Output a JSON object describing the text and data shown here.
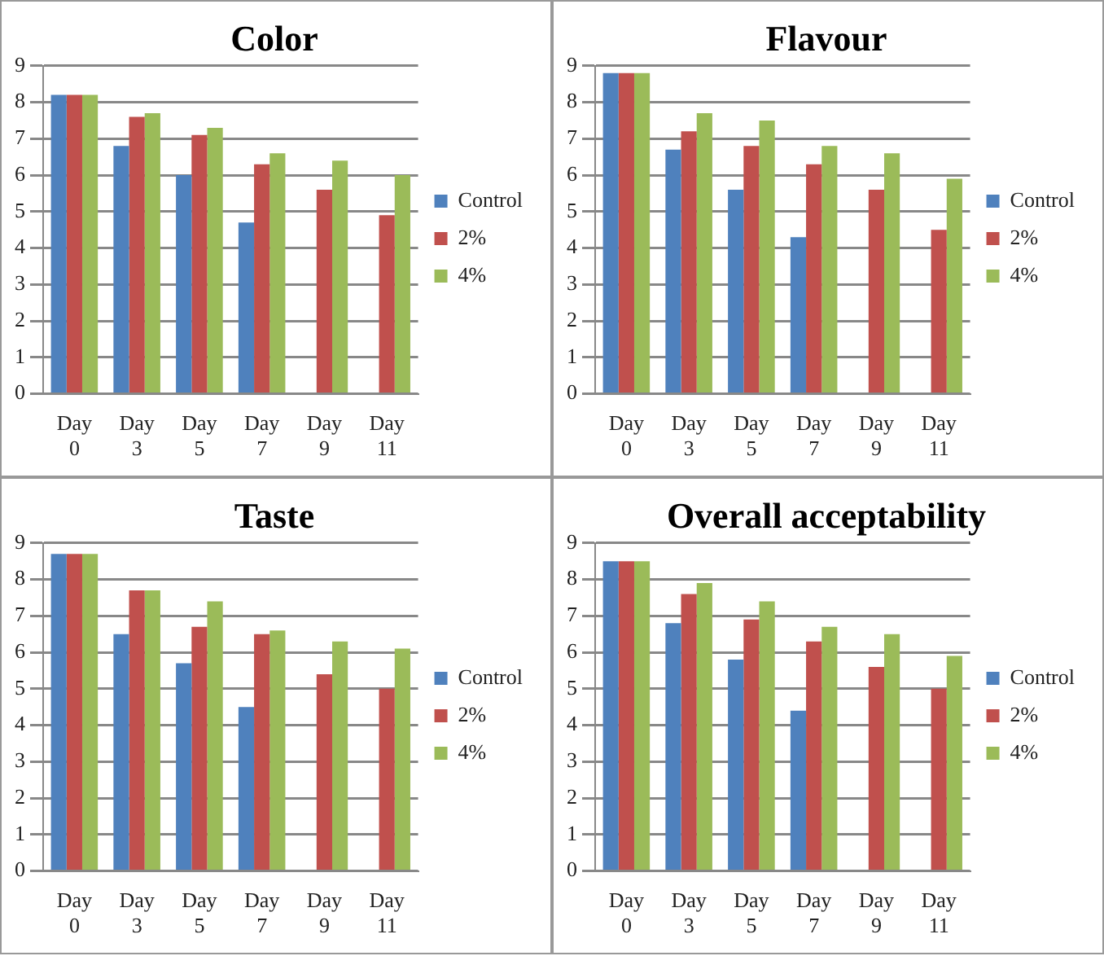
{
  "chart_data": [
    {
      "type": "bar",
      "title": "Color",
      "categories": [
        "Day 0",
        "Day 3",
        "Day 5",
        "Day 7",
        "Day 9",
        "Day 11"
      ],
      "ylim": [
        0,
        9
      ],
      "yticks": [
        0,
        1,
        2,
        3,
        4,
        5,
        6,
        7,
        8,
        9
      ],
      "grid": "y",
      "legend": "right",
      "series": [
        {
          "name": "Control",
          "color": "#4f81bd",
          "values": [
            8.2,
            6.8,
            6.0,
            4.7,
            null,
            null
          ]
        },
        {
          "name": "2%",
          "color": "#c0504d",
          "values": [
            8.2,
            7.6,
            7.1,
            6.3,
            5.6,
            4.9
          ]
        },
        {
          "name": "4%",
          "color": "#9bbb59",
          "values": [
            8.2,
            7.7,
            7.3,
            6.6,
            6.4,
            6.0
          ]
        }
      ]
    },
    {
      "type": "bar",
      "title": "Flavour",
      "categories": [
        "Day 0",
        "Day 3",
        "Day 5",
        "Day 7",
        "Day 9",
        "Day 11"
      ],
      "ylim": [
        0,
        9
      ],
      "yticks": [
        0,
        1,
        2,
        3,
        4,
        5,
        6,
        7,
        8,
        9
      ],
      "grid": "y",
      "legend": "right",
      "series": [
        {
          "name": "Control",
          "color": "#4f81bd",
          "values": [
            8.8,
            6.7,
            5.6,
            4.3,
            null,
            null
          ]
        },
        {
          "name": "2%",
          "color": "#c0504d",
          "values": [
            8.8,
            7.2,
            6.8,
            6.3,
            5.6,
            4.5
          ]
        },
        {
          "name": "4%",
          "color": "#9bbb59",
          "values": [
            8.8,
            7.7,
            7.5,
            6.8,
            6.6,
            5.9
          ]
        }
      ]
    },
    {
      "type": "bar",
      "title": "Taste",
      "categories": [
        "Day 0",
        "Day 3",
        "Day 5",
        "Day 7",
        "Day 9",
        "Day 11"
      ],
      "ylim": [
        0,
        9
      ],
      "yticks": [
        0,
        1,
        2,
        3,
        4,
        5,
        6,
        7,
        8,
        9
      ],
      "grid": "y",
      "legend": "right",
      "series": [
        {
          "name": "Control",
          "color": "#4f81bd",
          "values": [
            8.7,
            6.5,
            5.7,
            4.5,
            null,
            null
          ]
        },
        {
          "name": "2%",
          "color": "#c0504d",
          "values": [
            8.7,
            7.7,
            6.7,
            6.5,
            5.4,
            5.0
          ]
        },
        {
          "name": "4%",
          "color": "#9bbb59",
          "values": [
            8.7,
            7.7,
            7.4,
            6.6,
            6.3,
            6.1
          ]
        }
      ]
    },
    {
      "type": "bar",
      "title": "Overall acceptability",
      "categories": [
        "Day 0",
        "Day 3",
        "Day 5",
        "Day 7",
        "Day 9",
        "Day 11"
      ],
      "ylim": [
        0,
        9
      ],
      "yticks": [
        0,
        1,
        2,
        3,
        4,
        5,
        6,
        7,
        8,
        9
      ],
      "grid": "y",
      "legend": "right",
      "series": [
        {
          "name": "Control",
          "color": "#4f81bd",
          "values": [
            8.5,
            6.8,
            5.8,
            4.4,
            null,
            null
          ]
        },
        {
          "name": "2%",
          "color": "#c0504d",
          "values": [
            8.5,
            7.6,
            6.9,
            6.3,
            5.6,
            5.0
          ]
        },
        {
          "name": "4%",
          "color": "#9bbb59",
          "values": [
            8.5,
            7.9,
            7.4,
            6.7,
            6.5,
            5.9
          ]
        }
      ]
    }
  ]
}
